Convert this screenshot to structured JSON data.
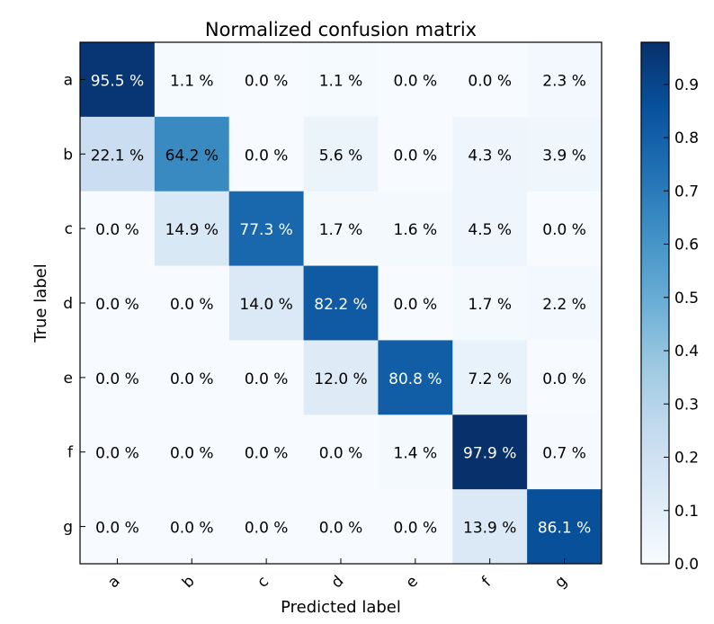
{
  "chart_data": {
    "type": "heatmap",
    "title": "Normalized confusion matrix",
    "xlabel": "Predicted label",
    "ylabel": "True label",
    "x_categories": [
      "a",
      "b",
      "c",
      "d",
      "e",
      "f",
      "g"
    ],
    "y_categories": [
      "a",
      "b",
      "c",
      "d",
      "e",
      "f",
      "g"
    ],
    "values": [
      [
        0.955,
        0.011,
        0.0,
        0.011,
        0.0,
        0.0,
        0.023
      ],
      [
        0.221,
        0.642,
        0.0,
        0.056,
        0.0,
        0.043,
        0.039
      ],
      [
        0.0,
        0.149,
        0.773,
        0.017,
        0.016,
        0.045,
        0.0
      ],
      [
        0.0,
        0.0,
        0.14,
        0.822,
        0.0,
        0.017,
        0.022
      ],
      [
        0.0,
        0.0,
        0.0,
        0.12,
        0.808,
        0.072,
        0.0
      ],
      [
        0.0,
        0.0,
        0.0,
        0.0,
        0.014,
        0.979,
        0.007
      ],
      [
        0.0,
        0.0,
        0.0,
        0.0,
        0.0,
        0.139,
        0.861
      ]
    ],
    "cell_labels": [
      [
        "95.5 %",
        "1.1 %",
        "0.0 %",
        "1.1 %",
        "0.0 %",
        "0.0 %",
        "2.3 %"
      ],
      [
        "22.1 %",
        "64.2 %",
        "0.0 %",
        "5.6 %",
        "0.0 %",
        "4.3 %",
        "3.9 %"
      ],
      [
        "0.0 %",
        "14.9 %",
        "77.3 %",
        "1.7 %",
        "1.6 %",
        "4.5 %",
        "0.0 %"
      ],
      [
        "0.0 %",
        "0.0 %",
        "14.0 %",
        "82.2 %",
        "0.0 %",
        "1.7 %",
        "2.2 %"
      ],
      [
        "0.0 %",
        "0.0 %",
        "0.0 %",
        "12.0 %",
        "80.8 %",
        "7.2 %",
        "0.0 %"
      ],
      [
        "0.0 %",
        "0.0 %",
        "0.0 %",
        "0.0 %",
        "1.4 %",
        "97.9 %",
        "0.7 %"
      ],
      [
        "0.0 %",
        "0.0 %",
        "0.0 %",
        "0.0 %",
        "0.0 %",
        "13.9 %",
        "86.1 %"
      ]
    ],
    "colormap": "Blues",
    "colors": {
      "low": "#f7fbff",
      "high": "#08306b",
      "text_dark": "#000000",
      "text_light": "#ffffff"
    },
    "text_threshold": 0.7,
    "colorbar": {
      "range": [
        0.0,
        0.979
      ],
      "ticks": [
        "0.0",
        "0.1",
        "0.2",
        "0.3",
        "0.4",
        "0.5",
        "0.6",
        "0.7",
        "0.8",
        "0.9"
      ]
    },
    "grid": false
  }
}
